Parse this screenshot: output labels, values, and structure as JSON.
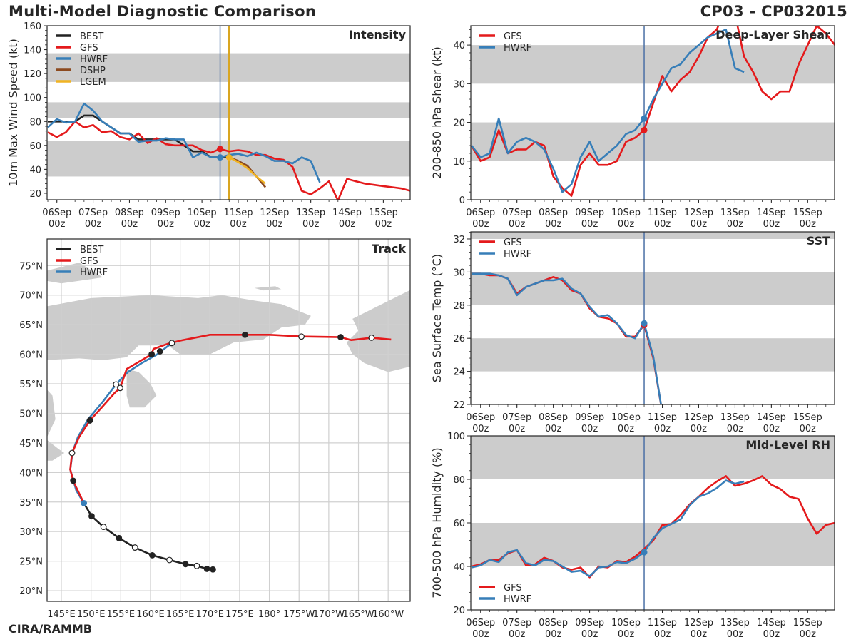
{
  "header": {
    "title": "Multi-Model Diagnostic Comparison",
    "storm_id": "CP03 - CP032015"
  },
  "footer": {
    "credit": "CIRA/RAMMB"
  },
  "colors": {
    "BEST": "#222222",
    "GFS": "#e41a1c",
    "HWRF": "#377eb8",
    "DSHP": "#8c4a1f",
    "LGEM": "#f0b323",
    "band": "#cccccc",
    "current_time_line": "#4a6fa5",
    "lgem_time_line": "#d9a520",
    "land": "#cccccc",
    "grid": "#d0d0d0"
  },
  "time_axis": {
    "ticks": [
      {
        "day": 0,
        "line1": "06Sep",
        "line2": "00z"
      },
      {
        "day": 1,
        "line1": "07Sep",
        "line2": "00z"
      },
      {
        "day": 2,
        "line1": "08Sep",
        "line2": "00z"
      },
      {
        "day": 3,
        "line1": "09Sep",
        "line2": "00z"
      },
      {
        "day": 4,
        "line1": "10Sep",
        "line2": "00z"
      },
      {
        "day": 5,
        "line1": "11Sep",
        "line2": "00z"
      },
      {
        "day": 6,
        "line1": "12Sep",
        "line2": "00z"
      },
      {
        "day": 7,
        "line1": "13Sep",
        "line2": "00z"
      },
      {
        "day": 8,
        "line1": "14Sep",
        "line2": "00z"
      },
      {
        "day": 9,
        "line1": "15Sep",
        "line2": "00z"
      }
    ],
    "xlim_days": [
      -0.27,
      9.74
    ],
    "current_time_day": 4.5,
    "lgem_init_day": 4.75
  },
  "chart_data": [
    {
      "id": "intensity",
      "type": "line",
      "title": "Intensity",
      "ylabel": "10m Max Wind Speed (kt)",
      "xlabel": "",
      "ylim": [
        14.6,
        160
      ],
      "yticks": [
        20,
        40,
        60,
        80,
        100,
        120,
        140,
        160
      ],
      "bands": [
        [
          34,
          64
        ],
        [
          83,
          96
        ],
        [
          113,
          137
        ]
      ],
      "legend": [
        "BEST",
        "GFS",
        "HWRF",
        "DSHP",
        "LGEM"
      ],
      "legend_position": "top-left",
      "series": [
        {
          "name": "BEST",
          "t0": -0.25,
          "dt": 0.25,
          "values": [
            80,
            80,
            80,
            80,
            85,
            85,
            80,
            75,
            70,
            70,
            65,
            65,
            65,
            65,
            65,
            60,
            55,
            55,
            50,
            50,
            50
          ]
        },
        {
          "name": "GFS",
          "t0": -0.25,
          "dt": 0.25,
          "values": [
            71,
            67,
            71,
            80,
            75,
            77,
            71,
            72,
            67,
            65,
            70,
            62,
            66,
            61,
            60,
            60,
            60,
            56,
            54,
            57,
            55,
            56,
            55,
            52,
            52,
            49,
            48,
            42,
            22,
            19,
            24,
            30,
            14,
            32,
            30,
            28,
            27,
            26,
            25,
            24,
            22
          ]
        },
        {
          "name": "HWRF",
          "t0": -0.25,
          "dt": 0.25,
          "values": [
            75,
            82,
            79,
            80,
            95,
            89,
            80,
            75,
            70,
            70,
            63,
            64,
            64,
            66,
            65,
            65,
            50,
            54,
            50,
            50,
            52,
            53,
            51,
            54,
            51,
            47,
            47,
            45,
            50,
            47,
            29
          ]
        },
        {
          "name": "DSHP",
          "t0": 4.75,
          "dt": 0.25,
          "values": [
            50,
            47,
            43,
            34,
            25
          ]
        },
        {
          "name": "LGEM",
          "t0": 4.75,
          "dt": 0.25,
          "values": [
            50,
            46,
            41,
            34,
            28
          ]
        }
      ],
      "markers": [
        {
          "series": "GFS",
          "day": 4.5,
          "value": 57
        },
        {
          "series": "HWRF",
          "day": 4.5,
          "value": 50
        },
        {
          "series": "LGEM",
          "day": 4.75,
          "value": 50
        }
      ]
    },
    {
      "id": "shear",
      "type": "line",
      "title": "Deep-Layer Shear",
      "ylabel": "200-850 hPa Shear (kt)",
      "xlabel": "",
      "ylim": [
        0,
        45
      ],
      "yticks": [
        0,
        10,
        20,
        30,
        40
      ],
      "bands": [
        [
          10,
          20
        ],
        [
          30,
          40
        ]
      ],
      "legend": [
        "GFS",
        "HWRF"
      ],
      "legend_position": "top-left",
      "series": [
        {
          "name": "GFS",
          "t0": -0.25,
          "dt": 0.25,
          "values": [
            14,
            10,
            11,
            18,
            12,
            13,
            13,
            15,
            14,
            6,
            3,
            1,
            9,
            12,
            9,
            9,
            10,
            15,
            16,
            18,
            25,
            32,
            28,
            31,
            33,
            37,
            42,
            44,
            50,
            48,
            37,
            33,
            28,
            26,
            28,
            28,
            35,
            40,
            45,
            43,
            40
          ]
        },
        {
          "name": "HWRF",
          "t0": -0.25,
          "dt": 0.25,
          "values": [
            14,
            11,
            12,
            21,
            12,
            15,
            16,
            15,
            13,
            8,
            2,
            4,
            11,
            15,
            10,
            12,
            14,
            17,
            18,
            21,
            26,
            30,
            34,
            35,
            38,
            40,
            42,
            43,
            44,
            34,
            33
          ]
        }
      ],
      "markers": [
        {
          "series": "GFS",
          "day": 4.5,
          "value": 18
        },
        {
          "series": "HWRF",
          "day": 4.5,
          "value": 21
        }
      ]
    },
    {
      "id": "sst",
      "type": "line",
      "title": "SST",
      "ylabel": "Sea Surface Temp (°C)",
      "xlabel": "",
      "ylim": [
        22,
        32.43
      ],
      "yticks": [
        22,
        24,
        26,
        28,
        30,
        32
      ],
      "bands": [
        [
          24,
          26
        ],
        [
          28,
          30
        ],
        [
          32,
          33
        ]
      ],
      "legend": [
        "GFS",
        "HWRF"
      ],
      "legend_position": "top-left",
      "series": [
        {
          "name": "GFS",
          "t0": -0.25,
          "dt": 0.25,
          "values": [
            29.9,
            29.9,
            29.8,
            29.8,
            29.6,
            28.7,
            29.1,
            29.3,
            29.5,
            29.7,
            29.5,
            28.9,
            28.7,
            27.8,
            27.3,
            27.2,
            26.9,
            26.1,
            26.1,
            26.8,
            24.8,
            21.5
          ]
        },
        {
          "name": "HWRF",
          "t0": -0.25,
          "dt": 0.25,
          "values": [
            29.9,
            29.9,
            29.9,
            29.8,
            29.6,
            28.6,
            29.1,
            29.3,
            29.5,
            29.5,
            29.6,
            29.0,
            28.7,
            27.9,
            27.3,
            27.4,
            26.9,
            26.2,
            26.0,
            26.9,
            24.9,
            21.5
          ]
        }
      ],
      "markers": [
        {
          "series": "GFS",
          "day": 4.5,
          "value": 26.8
        },
        {
          "series": "HWRF",
          "day": 4.5,
          "value": 26.9
        }
      ]
    },
    {
      "id": "rh",
      "type": "line",
      "title": "Mid-Level RH",
      "ylabel": "700-500 hPa Humidity (%)",
      "xlabel": "",
      "ylim": [
        20,
        100
      ],
      "yticks": [
        20,
        40,
        60,
        80,
        100
      ],
      "bands": [
        [
          40,
          60
        ],
        [
          80,
          100
        ]
      ],
      "legend": [
        "GFS",
        "HWRF"
      ],
      "legend_position": "bottom-left",
      "series": [
        {
          "name": "GFS",
          "t0": -0.25,
          "dt": 0.25,
          "values": [
            40,
            41,
            43,
            43,
            46,
            47.5,
            40.5,
            41,
            44,
            42.5,
            39.5,
            38.5,
            39.5,
            35,
            40,
            39.5,
            42.5,
            42,
            44.5,
            48,
            52,
            59,
            59.5,
            63.5,
            68.5,
            72,
            76,
            79,
            81.5,
            77,
            78,
            79.5,
            81.5,
            77.5,
            75.5,
            72,
            71,
            62,
            55,
            59,
            60
          ]
        },
        {
          "name": "HWRF",
          "t0": -0.25,
          "dt": 0.25,
          "values": [
            39.5,
            40.5,
            43,
            42,
            46.5,
            47.5,
            41.5,
            40.5,
            43,
            42.5,
            40,
            37.5,
            38,
            35.5,
            39.5,
            40,
            42,
            41.5,
            43.5,
            46.5,
            53,
            57.5,
            59.5,
            61.5,
            68,
            72,
            73.5,
            76,
            79.5,
            78,
            79
          ]
        }
      ],
      "markers": [
        {
          "series": "HWRF",
          "day": 4.5,
          "value": 46.5
        }
      ]
    },
    {
      "id": "track",
      "type": "line",
      "title": "Track",
      "ylabel": "",
      "xlabel": "",
      "lat_range": [
        18.2,
        79.5
      ],
      "lon_range_east": [
        142.6,
        203.7
      ],
      "lat_ticks": [
        {
          "value": 20,
          "label": "20°N"
        },
        {
          "value": 25,
          "label": "25°N"
        },
        {
          "value": 30,
          "label": "30°N"
        },
        {
          "value": 35,
          "label": "35°N"
        },
        {
          "value": 40,
          "label": "40°N"
        },
        {
          "value": 45,
          "label": "45°N"
        },
        {
          "value": 50,
          "label": "50°N"
        },
        {
          "value": 55,
          "label": "55°N"
        },
        {
          "value": 60,
          "label": "60°N"
        },
        {
          "value": 65,
          "label": "65°N"
        },
        {
          "value": 70,
          "label": "70°N"
        },
        {
          "value": 75,
          "label": "75°N"
        }
      ],
      "lon_ticks": [
        {
          "value": 145,
          "label": "145°E"
        },
        {
          "value": 150,
          "label": "150°E"
        },
        {
          "value": 155,
          "label": "155°E"
        },
        {
          "value": 160,
          "label": "160°E"
        },
        {
          "value": 165,
          "label": "165°E"
        },
        {
          "value": 170,
          "label": "170°E"
        },
        {
          "value": 175,
          "label": "175°E"
        },
        {
          "value": 180,
          "label": "180°"
        },
        {
          "value": 185,
          "label": "175°W"
        },
        {
          "value": 190,
          "label": "170°W"
        },
        {
          "value": 195,
          "label": "165°W"
        },
        {
          "value": 200,
          "label": "160°W"
        }
      ],
      "legend": [
        "BEST",
        "GFS",
        "HWRF"
      ],
      "legend_position": "top-left",
      "series": [
        {
          "name": "BEST",
          "points": [
            [
              170.5,
              23.6
            ],
            [
              169.5,
              23.7
            ],
            [
              167.8,
              24.2
            ],
            [
              165.9,
              24.5
            ],
            [
              163.2,
              25.2
            ],
            [
              160.3,
              26.0
            ],
            [
              157.4,
              27.3
            ],
            [
              154.7,
              28.9
            ],
            [
              152.1,
              30.8
            ],
            [
              150.1,
              32.6
            ],
            [
              148.8,
              34.8
            ]
          ]
        },
        {
          "name": "GFS",
          "points": [
            [
              148.8,
              34.8
            ],
            [
              147.5,
              37.5
            ],
            [
              147.0,
              38.6
            ],
            [
              146.5,
              40.5
            ],
            [
              146.8,
              43.3
            ],
            [
              148.0,
              46.0
            ],
            [
              149.8,
              48.8
            ],
            [
              151.8,
              51.0
            ],
            [
              154.0,
              53.5
            ],
            [
              154.9,
              54.3
            ],
            [
              156.0,
              57.5
            ],
            [
              160.2,
              60.0
            ],
            [
              160.5,
              60.9
            ],
            [
              163.0,
              61.8
            ],
            [
              165.0,
              62.3
            ],
            [
              170.0,
              63.3
            ],
            [
              175.9,
              63.3
            ],
            [
              180.0,
              63.3
            ],
            [
              185.4,
              63.0
            ],
            [
              192.0,
              62.9
            ],
            [
              193.8,
              62.4
            ],
            [
              197.2,
              62.8
            ],
            [
              200.5,
              62.5
            ]
          ]
        },
        {
          "name": "HWRF",
          "points": [
            [
              148.8,
              34.8
            ],
            [
              147.5,
              37.0
            ],
            [
              146.5,
              40.5
            ],
            [
              146.9,
              43.5
            ],
            [
              147.8,
              46.0
            ],
            [
              149.5,
              49.0
            ],
            [
              152.0,
              52.0
            ],
            [
              154.2,
              54.9
            ],
            [
              156.2,
              57.0
            ],
            [
              158.5,
              58.5
            ],
            [
              161.0,
              59.9
            ],
            [
              163.6,
              61.9
            ]
          ]
        }
      ],
      "point_markers": [
        {
          "series": "BEST",
          "filled": true,
          "points": [
            [
              170.5,
              23.6
            ],
            [
              169.5,
              23.7
            ],
            [
              165.9,
              24.5
            ],
            [
              160.3,
              26.0
            ],
            [
              154.7,
              28.9
            ],
            [
              150.1,
              32.6
            ]
          ]
        },
        {
          "series": "BEST",
          "filled": false,
          "points": [
            [
              167.8,
              24.2
            ],
            [
              163.2,
              25.2
            ],
            [
              157.4,
              27.3
            ],
            [
              152.1,
              30.8
            ]
          ]
        },
        {
          "series": "HWRF",
          "filled": true,
          "points": [
            [
              148.8,
              34.8
            ]
          ]
        },
        {
          "series": "GFS",
          "filled": true,
          "points": [
            [
              147.0,
              38.6
            ],
            [
              149.8,
              48.8
            ],
            [
              160.2,
              60.0
            ],
            [
              161.6,
              60.5
            ],
            [
              175.9,
              63.3
            ],
            [
              192.0,
              62.9
            ]
          ]
        },
        {
          "series": "GFS",
          "filled": false,
          "points": [
            [
              146.8,
              43.3
            ],
            [
              154.9,
              54.3
            ],
            [
              185.4,
              63.0
            ],
            [
              197.2,
              62.8
            ]
          ]
        },
        {
          "series": "HWRF",
          "filled": false,
          "points": [
            [
              154.2,
              54.9
            ],
            [
              163.6,
              61.9
            ]
          ]
        }
      ]
    }
  ]
}
